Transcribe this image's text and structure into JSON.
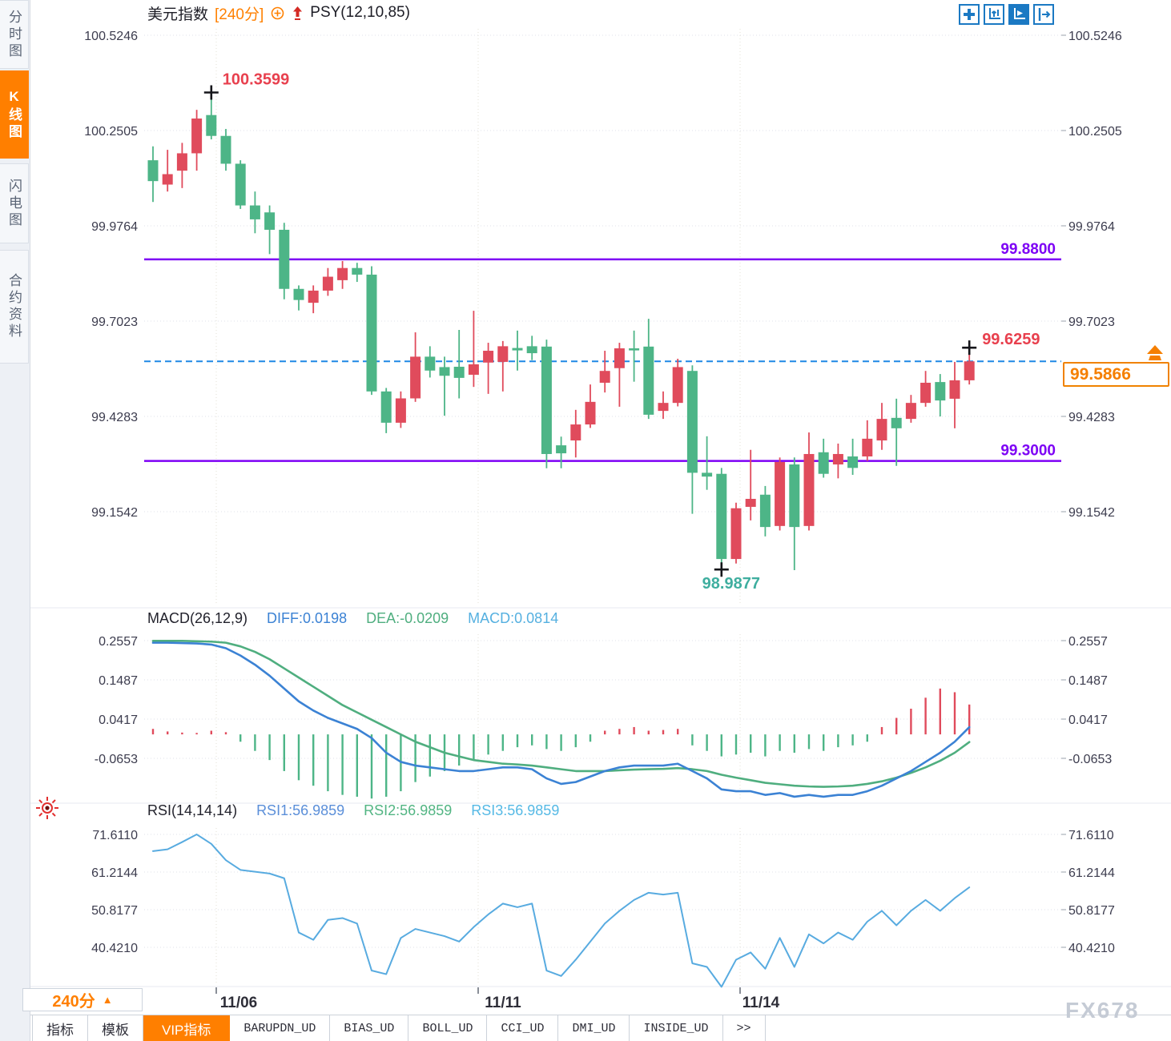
{
  "app": {
    "watermark": "FX678"
  },
  "sidebar": {
    "tabs": [
      {
        "label": "分时图",
        "active": false
      },
      {
        "label": "K线图",
        "active": true
      },
      {
        "label": "闪电图",
        "active": false
      },
      {
        "label": "合约资料",
        "active": false
      }
    ]
  },
  "header": {
    "symbol": "美元指数",
    "timeframe": "[240分]",
    "overlay": "PSY(12,10,85)"
  },
  "toolbar": {
    "icons": [
      "move-icon",
      "axis-zoom-icon",
      "auto-scale-icon",
      "pan-right-icon"
    ]
  },
  "main_chart": {
    "y_axis": [
      "100.5246",
      "100.2505",
      "99.9764",
      "99.7023",
      "99.4283",
      "99.1542"
    ],
    "levels": [
      {
        "value": 99.88,
        "label": "99.8800"
      },
      {
        "value": 99.3,
        "label": "99.3000"
      }
    ],
    "current_price": {
      "value": 99.5866,
      "label": "99.5866"
    },
    "annotations": {
      "high": {
        "index": 4,
        "price": 100.3599,
        "label": "100.3599"
      },
      "low": {
        "index": 39,
        "price": 98.9877,
        "label": "98.9877"
      },
      "recent_high": {
        "index": 56,
        "price": 99.6259,
        "label": "99.6259"
      }
    },
    "candles": [
      [
        100.165,
        100.205,
        100.045,
        100.105
      ],
      [
        100.095,
        100.195,
        100.075,
        100.125
      ],
      [
        100.135,
        100.215,
        100.085,
        100.185
      ],
      [
        100.185,
        100.31,
        100.135,
        100.285
      ],
      [
        100.295,
        100.36,
        100.225,
        100.235
      ],
      [
        100.235,
        100.255,
        100.135,
        100.155
      ],
      [
        100.155,
        100.165,
        100.025,
        100.035
      ],
      [
        100.035,
        100.075,
        99.955,
        99.995
      ],
      [
        100.015,
        100.035,
        99.895,
        99.965
      ],
      [
        99.965,
        99.985,
        99.765,
        99.795
      ],
      [
        99.795,
        99.805,
        99.733,
        99.763
      ],
      [
        99.755,
        99.805,
        99.725,
        99.79
      ],
      [
        99.79,
        99.855,
        99.775,
        99.83
      ],
      [
        99.82,
        99.875,
        99.795,
        99.855
      ],
      [
        99.855,
        99.87,
        99.815,
        99.836
      ],
      [
        99.836,
        99.86,
        99.49,
        99.5
      ],
      [
        99.5,
        99.51,
        99.38,
        99.41
      ],
      [
        99.41,
        99.5,
        99.395,
        99.48
      ],
      [
        99.48,
        99.67,
        99.47,
        99.6
      ],
      [
        99.6,
        99.63,
        99.54,
        99.56
      ],
      [
        99.57,
        99.6,
        99.43,
        99.545
      ],
      [
        99.571,
        99.677,
        99.48,
        99.539
      ],
      [
        99.548,
        99.732,
        99.513,
        99.578
      ],
      [
        99.583,
        99.64,
        99.493,
        99.617
      ],
      [
        99.585,
        99.645,
        99.5,
        99.63
      ],
      [
        99.625,
        99.675,
        99.56,
        99.618
      ],
      [
        99.63,
        99.66,
        99.59,
        99.61
      ],
      [
        99.629,
        99.649,
        99.279,
        99.32
      ],
      [
        99.345,
        99.37,
        99.279,
        99.322
      ],
      [
        99.359,
        99.447,
        99.31,
        99.405
      ],
      [
        99.405,
        99.52,
        99.395,
        99.47
      ],
      [
        99.525,
        99.617,
        99.497,
        99.559
      ],
      [
        99.567,
        99.64,
        99.456,
        99.624
      ],
      [
        99.624,
        99.675,
        99.528,
        99.618
      ],
      [
        99.629,
        99.709,
        99.421,
        99.433
      ],
      [
        99.444,
        99.5,
        99.421,
        99.467
      ],
      [
        99.467,
        99.594,
        99.457,
        99.57
      ],
      [
        99.559,
        99.575,
        99.148,
        99.266
      ],
      [
        99.266,
        99.371,
        99.217,
        99.255
      ],
      [
        99.263,
        99.28,
        98.988,
        99.018
      ],
      [
        99.018,
        99.18,
        99.005,
        99.164
      ],
      [
        99.168,
        99.332,
        99.129,
        99.191
      ],
      [
        99.203,
        99.228,
        99.083,
        99.11
      ],
      [
        99.113,
        99.31,
        99.1,
        99.297
      ],
      [
        99.29,
        99.31,
        98.986,
        99.11
      ],
      [
        99.113,
        99.382,
        99.1,
        99.32
      ],
      [
        99.325,
        99.364,
        99.252,
        99.263
      ],
      [
        99.29,
        99.35,
        99.25,
        99.32
      ],
      [
        99.313,
        99.364,
        99.26,
        99.28
      ],
      [
        99.313,
        99.417,
        99.3,
        99.364
      ],
      [
        99.359,
        99.467,
        99.332,
        99.421
      ],
      [
        99.424,
        99.479,
        99.286,
        99.394
      ],
      [
        99.421,
        99.49,
        99.41,
        99.467
      ],
      [
        99.467,
        99.559,
        99.456,
        99.525
      ],
      [
        99.527,
        99.55,
        99.428,
        99.474
      ],
      [
        99.479,
        99.585,
        99.394,
        99.532
      ],
      [
        99.532,
        99.6259,
        99.52,
        99.5866
      ]
    ]
  },
  "macd": {
    "title": "MACD(26,12,9)",
    "diff_label": "DIFF:0.0198",
    "dea_label": "DEA:-0.0209",
    "macd_label": "MACD:0.0814",
    "y_axis": [
      "0.2557",
      "0.1487",
      "0.0417",
      "-0.0653"
    ],
    "diff": [
      0.25,
      0.25,
      0.249,
      0.248,
      0.245,
      0.235,
      0.215,
      0.19,
      0.16,
      0.125,
      0.09,
      0.065,
      0.045,
      0.03,
      0.015,
      -0.01,
      -0.05,
      -0.075,
      -0.085,
      -0.09,
      -0.095,
      -0.1,
      -0.1,
      -0.095,
      -0.09,
      -0.09,
      -0.095,
      -0.12,
      -0.135,
      -0.13,
      -0.115,
      -0.1,
      -0.09,
      -0.085,
      -0.085,
      -0.085,
      -0.08,
      -0.1,
      -0.12,
      -0.15,
      -0.155,
      -0.155,
      -0.165,
      -0.16,
      -0.17,
      -0.165,
      -0.17,
      -0.165,
      -0.165,
      -0.155,
      -0.14,
      -0.12,
      -0.1,
      -0.075,
      -0.05,
      -0.02,
      0.0198
    ],
    "dea": [
      0.255,
      0.255,
      0.255,
      0.254,
      0.253,
      0.25,
      0.24,
      0.225,
      0.205,
      0.18,
      0.155,
      0.13,
      0.105,
      0.08,
      0.06,
      0.04,
      0.02,
      0.0,
      -0.02,
      -0.035,
      -0.05,
      -0.06,
      -0.07,
      -0.075,
      -0.08,
      -0.082,
      -0.085,
      -0.09,
      -0.095,
      -0.1,
      -0.1,
      -0.1,
      -0.098,
      -0.096,
      -0.095,
      -0.094,
      -0.092,
      -0.095,
      -0.1,
      -0.11,
      -0.118,
      -0.125,
      -0.132,
      -0.136,
      -0.14,
      -0.142,
      -0.143,
      -0.142,
      -0.14,
      -0.135,
      -0.128,
      -0.118,
      -0.105,
      -0.09,
      -0.072,
      -0.05,
      -0.0209
    ],
    "hist": [
      0.015,
      0.008,
      0.005,
      0.004,
      0.01,
      0.006,
      -0.02,
      -0.045,
      -0.07,
      -0.1,
      -0.125,
      -0.14,
      -0.155,
      -0.165,
      -0.17,
      -0.175,
      -0.17,
      -0.155,
      -0.13,
      -0.115,
      -0.1,
      -0.085,
      -0.07,
      -0.055,
      -0.045,
      -0.035,
      -0.03,
      -0.04,
      -0.045,
      -0.035,
      -0.02,
      0.01,
      0.015,
      0.02,
      0.01,
      0.012,
      0.015,
      -0.03,
      -0.045,
      -0.06,
      -0.055,
      -0.05,
      -0.06,
      -0.045,
      -0.05,
      -0.04,
      -0.045,
      -0.035,
      -0.03,
      -0.02,
      0.02,
      0.045,
      0.07,
      0.1,
      0.125,
      0.115,
      0.0814
    ]
  },
  "rsi": {
    "title": "RSI(14,14,14)",
    "rsi1_label": "RSI1:56.9859",
    "rsi2_label": "RSI2:56.9859",
    "rsi3_label": "RSI3:56.9859",
    "y_axis": [
      "71.6110",
      "61.2144",
      "50.8177",
      "40.4210"
    ],
    "values": [
      67,
      67.5,
      69.5,
      71.6,
      69,
      64.5,
      61.8,
      61.3,
      60.8,
      59.5,
      44.5,
      42.5,
      48,
      48.5,
      47,
      34,
      33,
      43,
      45.5,
      44.5,
      43.5,
      42,
      46,
      49.5,
      52.5,
      51.5,
      52.5,
      34,
      32.5,
      37,
      42,
      47,
      50.5,
      53.5,
      55.5,
      55,
      55.5,
      36,
      35,
      29.5,
      37,
      39,
      34.5,
      43,
      35,
      44,
      41.5,
      44.5,
      42.5,
      47.5,
      50.5,
      46.5,
      50.5,
      53.5,
      50.5,
      54,
      56.99
    ]
  },
  "x_axis": {
    "dates": [
      "11/06",
      "11/11",
      "11/14"
    ]
  },
  "footer": {
    "timeframe": "240分",
    "triangle": "▲",
    "tabs": [
      {
        "label": "指标",
        "active": false,
        "mono": false
      },
      {
        "label": "模板",
        "active": false,
        "mono": false
      },
      {
        "label": "VIP指标",
        "active": true,
        "mono": false
      },
      {
        "label": "BARUPDN_UD",
        "active": false,
        "mono": true
      },
      {
        "label": "BIAS_UD",
        "active": false,
        "mono": true
      },
      {
        "label": "BOLL_UD",
        "active": false,
        "mono": true
      },
      {
        "label": "CCI_UD",
        "active": false,
        "mono": true
      },
      {
        "label": "DMI_UD",
        "active": false,
        "mono": true
      },
      {
        "label": "INSIDE_UD",
        "active": false,
        "mono": true
      },
      {
        "label": ">>",
        "active": false,
        "mono": true
      }
    ]
  },
  "colors": {
    "up": "#e04b5c",
    "down": "#4db587",
    "level_line": "#7d00f5",
    "dashed_line": "#1e88e5",
    "accent_orange": "#ff7f00",
    "diff_line": "#3b82d4",
    "dea_line": "#4fae7f",
    "macd_value": "#55b0e0",
    "rsi1": "#5b8fd9",
    "rsi2": "#52b583",
    "rsi3": "#55b9e5",
    "rsi_line": "#58abe0",
    "high_label": "#e8404e",
    "low_label": "#3fae9f",
    "axis_text": "#3c3c4e",
    "date_text": "#2e2e38"
  }
}
